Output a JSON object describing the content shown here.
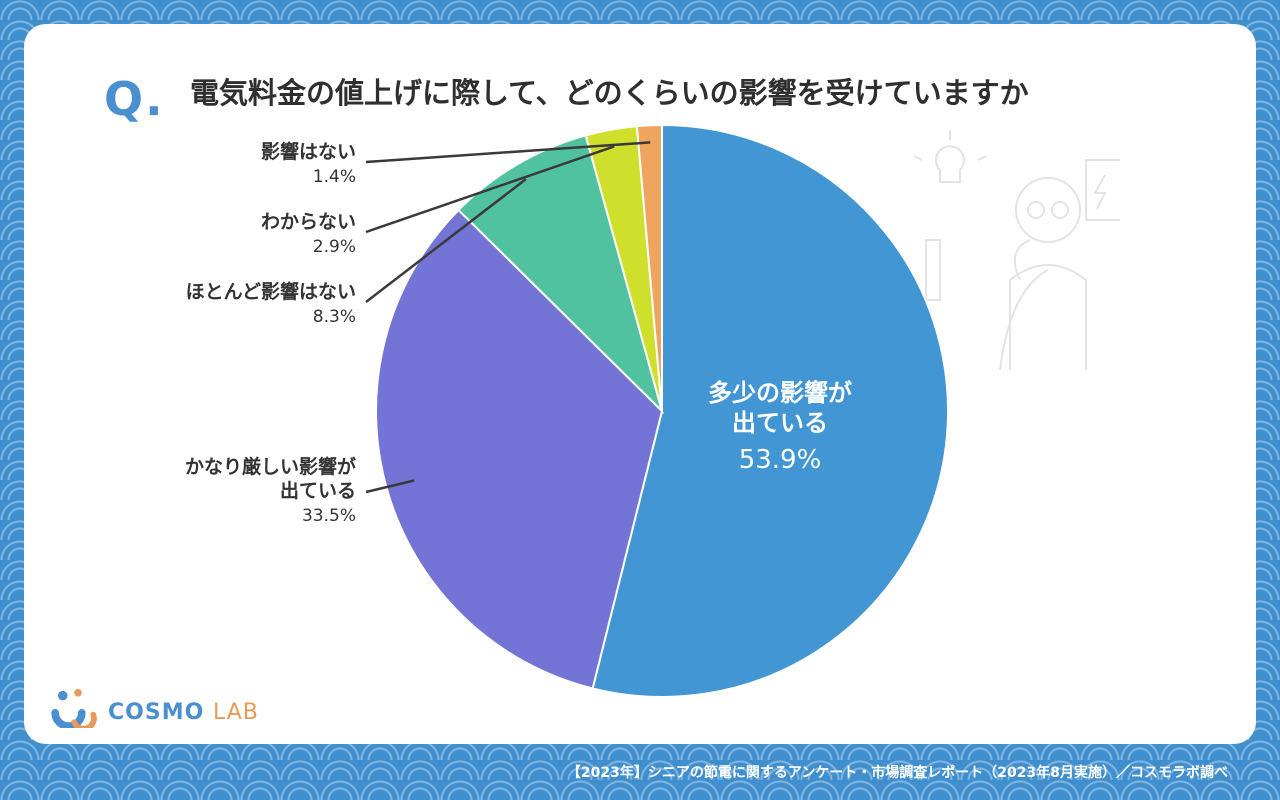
{
  "header": {
    "q_mark": "Q.",
    "title": "電気料金の値上げに際して、どのくらいの影響を受けていますか"
  },
  "chart_data": {
    "type": "pie",
    "title": "電気料金の値上げに際して、どのくらいの影響を受けていますか",
    "slices": [
      {
        "label": "多少の影響が出ている",
        "label_lines": [
          "多少の影響が",
          "出ている"
        ],
        "value": 53.9,
        "display": "53.9%",
        "color": "#4196d3"
      },
      {
        "label": "かなり厳しい影響が出ている",
        "label_lines": [
          "かなり厳しい影響が",
          "出ている"
        ],
        "value": 33.5,
        "display": "33.5%",
        "color": "#7474d6"
      },
      {
        "label": "ほとんど影響はない",
        "label_lines": [
          "ほとんど影響はない"
        ],
        "value": 8.3,
        "display": "8.3%",
        "color": "#50c2a0"
      },
      {
        "label": "わからない",
        "label_lines": [
          "わからない"
        ],
        "value": 2.9,
        "display": "2.9%",
        "color": "#cfe02c"
      },
      {
        "label": "影響はない",
        "label_lines": [
          "影響はない"
        ],
        "value": 1.4,
        "display": "1.4%",
        "color": "#f0a55e"
      }
    ]
  },
  "logo": {
    "part1": "COSMO",
    "part2": "LAB"
  },
  "source": "【2023年】シニアの節電に関するアンケート・市場調査レポート（2023年8月実施）／コスモラボ調べ"
}
